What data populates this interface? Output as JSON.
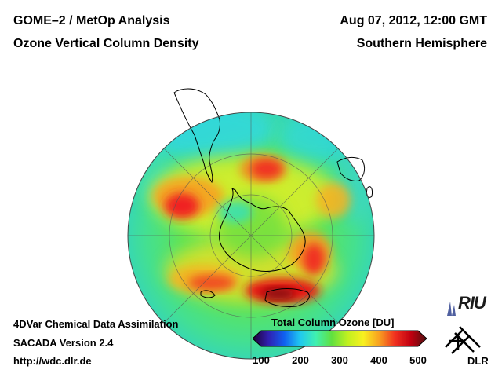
{
  "header": {
    "title_line1": "GOME–2 / MetOp Analysis",
    "title_line2": "Ozone Vertical Column Density",
    "datetime": "Aug 07, 2012, 12:00 GMT",
    "region": "Southern Hemisphere"
  },
  "footer": {
    "line1": "4DVar Chemical Data Assimilation",
    "line2": "SACADA Version 2.4",
    "line3": "http://wdc.dlr.de"
  },
  "colorbar": {
    "title": "Total Column Ozone [DU]",
    "ticks": [
      "100",
      "200",
      "300",
      "400",
      "500"
    ],
    "colors": [
      "#200030",
      "#3020b0",
      "#1060f0",
      "#20c8f0",
      "#40f0b0",
      "#60e040",
      "#c0f020",
      "#f8f020",
      "#f8a020",
      "#f03020",
      "#c00010",
      "#501010"
    ]
  },
  "logos": {
    "riu": "RIU",
    "dlr": "DLR"
  },
  "map": {
    "projection": "orthographic south polar",
    "ocean_base_color": "#52e06a",
    "coastline_color": "#000000"
  }
}
